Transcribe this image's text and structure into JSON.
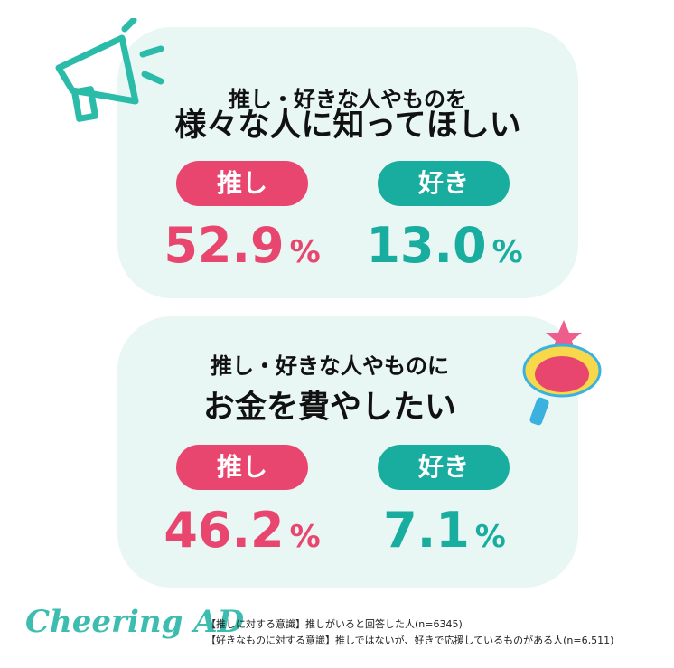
{
  "cards": [
    {
      "title_lines": [
        "推し・好きな人やものを",
        "様々な人に知ってほしい"
      ],
      "items": [
        {
          "label": "推し",
          "value": "52.9",
          "unit": "%"
        },
        {
          "label": "好き",
          "value": "13.0",
          "unit": "%"
        }
      ]
    },
    {
      "title_lines": [
        "推し・好きな人やものに",
        "お金を費やしたい"
      ],
      "items": [
        {
          "label": "推し",
          "value": "46.2",
          "unit": "%"
        },
        {
          "label": "好き",
          "value": "7.1",
          "unit": "%"
        }
      ]
    }
  ],
  "footer": {
    "logo": "Cheering AD",
    "notes": [
      "【推しに対する意識】推しがいると回答した人(n=6345)",
      "【好きなものに対する意識】推しではないが、好きで応援しているものがある人(n=6,511)"
    ]
  }
}
